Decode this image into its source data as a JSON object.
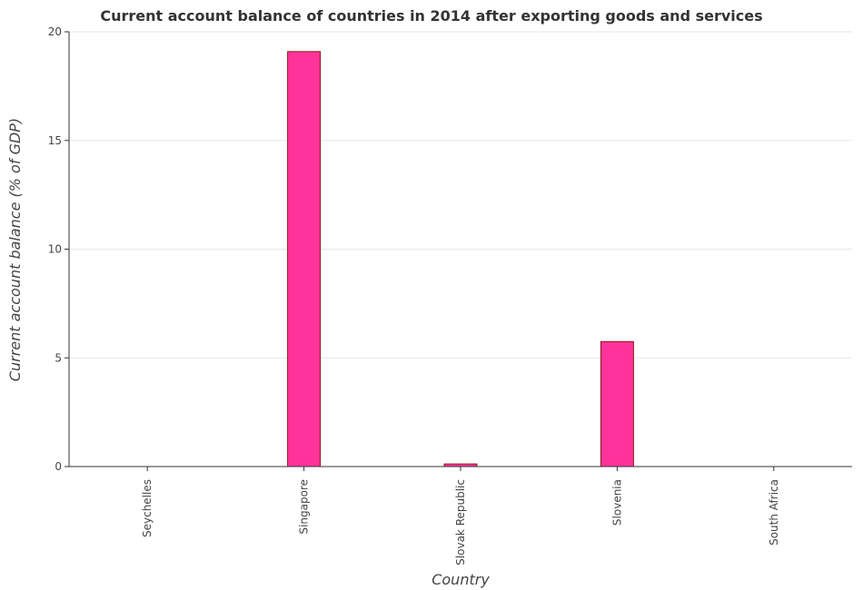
{
  "chart_data": {
    "type": "bar",
    "title": "Current account balance of countries in 2014 after exporting goods and services",
    "xlabel": "Country",
    "ylabel": "Current account balance (% of GDP)",
    "categories": [
      "Seychelles",
      "Singapore",
      "Slovak Republic",
      "Slovenia",
      "South Africa"
    ],
    "values": [
      0,
      19.09,
      0.12,
      5.75,
      0
    ],
    "ylim": [
      0,
      20
    ],
    "yticks": [
      "0",
      "5",
      "10",
      "15",
      "20"
    ],
    "grid": true,
    "colors": {
      "bar_fill": "#ff3399",
      "bar_stroke": "#8b1a1a"
    }
  }
}
